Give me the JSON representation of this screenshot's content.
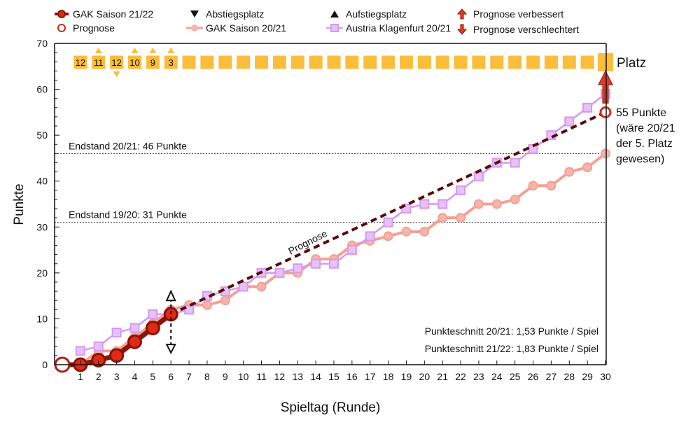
{
  "chart_data": {
    "type": "line",
    "xlabel": "Spieltag (Runde)",
    "ylabel": "Punkte",
    "xlim": [
      0,
      30
    ],
    "ylim": [
      0,
      70
    ],
    "x_ticks": [
      1,
      2,
      3,
      4,
      5,
      6,
      7,
      8,
      9,
      10,
      11,
      12,
      13,
      14,
      15,
      16,
      17,
      18,
      19,
      20,
      21,
      22,
      23,
      24,
      25,
      26,
      27,
      28,
      29,
      30
    ],
    "y_ticks": [
      0,
      10,
      20,
      30,
      40,
      50,
      60,
      70
    ],
    "legend": {
      "gak2122": "GAK Saison 21/22",
      "prognose": "Prognose",
      "abstieg": "Abstiegsplatz",
      "gak2021": "GAK Saison 20/21",
      "aufstieg": "Aufstiegsplatz",
      "austria": "Austria Klagenfurt 20/21",
      "verbessert": "Prognose verbessert",
      "verschlechtert": "Prognose verschlechtert"
    },
    "series": [
      {
        "name": "GAK Saison 21/22",
        "color": "#b81c10",
        "x": [
          0,
          1,
          2,
          3,
          4,
          5,
          6
        ],
        "values": [
          0,
          0,
          1,
          2,
          5,
          8,
          11
        ]
      },
      {
        "name": "GAK Saison 20/21",
        "color": "#f2a195",
        "x": [
          1,
          2,
          3,
          4,
          5,
          6,
          7,
          8,
          9,
          10,
          11,
          12,
          13,
          14,
          15,
          16,
          17,
          18,
          19,
          20,
          21,
          22,
          23,
          24,
          25,
          26,
          27,
          28,
          29,
          30
        ],
        "values": [
          0,
          3,
          3,
          6,
          9,
          12,
          13,
          13,
          14,
          17,
          17,
          20,
          20,
          23,
          23,
          26,
          27,
          28,
          29,
          29,
          32,
          32,
          35,
          35,
          36,
          39,
          39,
          42,
          43,
          46
        ]
      },
      {
        "name": "Austria Klagenfurt 20/21",
        "color": "#d49af0",
        "x": [
          1,
          2,
          3,
          4,
          5,
          6,
          7,
          8,
          9,
          10,
          11,
          12,
          13,
          14,
          15,
          16,
          17,
          18,
          19,
          20,
          21,
          22,
          23,
          24,
          25,
          26,
          27,
          28,
          29,
          30
        ],
        "values": [
          3,
          4,
          7,
          8,
          11,
          11,
          12,
          15,
          16,
          17,
          20,
          20,
          21,
          22,
          22,
          25,
          28,
          31,
          34,
          35,
          35,
          38,
          41,
          44,
          44,
          47,
          50,
          53,
          56,
          59
        ]
      },
      {
        "name": "Prognose",
        "color": "#5a0a0a",
        "x": [
          6,
          30
        ],
        "values": [
          11,
          55
        ]
      }
    ],
    "reference_lines": [
      {
        "value": 46,
        "label": "Endstand 20/21: 46 Punkte"
      },
      {
        "value": 31,
        "label": "Endstand 19/20: 31 Punkte"
      }
    ],
    "prognose_label": "Prognose",
    "platz": {
      "label": "Platz",
      "color": "#fbbd3c",
      "values": [
        "12",
        "11",
        "12",
        "10",
        "9",
        "3"
      ],
      "trend": [
        "",
        "up",
        "down",
        "up",
        "up",
        "up"
      ]
    },
    "annotation": [
      "55 Punkte",
      "(wäre 20/21",
      "der 5. Platz",
      "gewesen)"
    ],
    "stats": [
      "Punkteschnitt 20/21: 1,53 Punkte / Spiel",
      "Punkteschnitt 21/22: 1,83 Punkte / Spiel"
    ]
  }
}
